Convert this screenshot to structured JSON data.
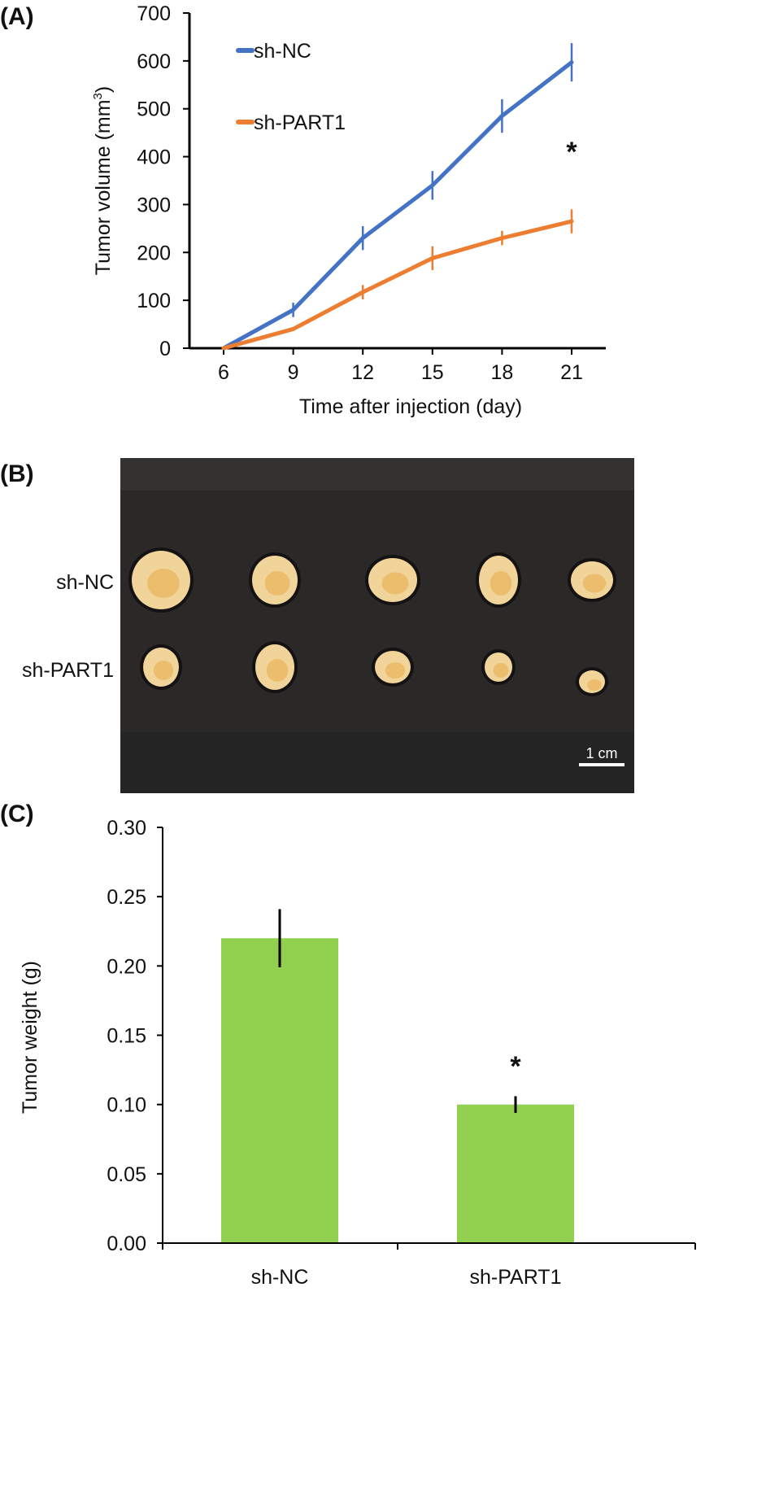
{
  "panels": {
    "a": "(A)",
    "b": "(B)",
    "c": "(C)"
  },
  "chart_data": [
    {
      "type": "line",
      "title": "",
      "xlabel": "Time after injection (day)",
      "ylabel": "Tumor volume (mm",
      "ylabel_sup": "3",
      "ylabel_end": ")",
      "x": [
        6,
        9,
        12,
        15,
        18,
        21
      ],
      "xticks": [
        "6",
        "9",
        "12",
        "15",
        "18",
        "21"
      ],
      "yticks": [
        "0",
        "100",
        "200",
        "300",
        "400",
        "500",
        "600",
        "700"
      ],
      "ylim": [
        0,
        700
      ],
      "grid": false,
      "legend_position": "top-left",
      "series": [
        {
          "name": "sh-NC",
          "color": "#4472C4",
          "values": [
            0,
            80,
            230,
            340,
            485,
            597
          ],
          "errors": [
            0,
            15,
            25,
            30,
            35,
            40
          ]
        },
        {
          "name": "sh-PART1",
          "color": "#ED7D31",
          "values": [
            0,
            40,
            117,
            188,
            230,
            265
          ],
          "errors": [
            0,
            4,
            15,
            25,
            15,
            25
          ]
        }
      ],
      "annotations": [
        {
          "text": "*",
          "x": 21
        }
      ]
    },
    {
      "type": "bar",
      "title": "",
      "xlabel": "",
      "ylabel": "Tumor weight (g)",
      "categories": [
        "sh-NC",
        "sh-PART1"
      ],
      "values": [
        0.22,
        0.1
      ],
      "errors": [
        0.021,
        0.006
      ],
      "color": "#92D050",
      "yticks": [
        "0.00",
        "0.05",
        "0.10",
        "0.15",
        "0.20",
        "0.25",
        "0.30"
      ],
      "ylim": [
        0,
        0.3
      ],
      "grid": false,
      "annotations": [
        {
          "text": "*",
          "category": "sh-PART1"
        }
      ]
    }
  ],
  "photo": {
    "row_labels": [
      "sh-NC",
      "sh-PART1"
    ],
    "scale_bar": "1 cm",
    "tumors_per_row": 5
  }
}
